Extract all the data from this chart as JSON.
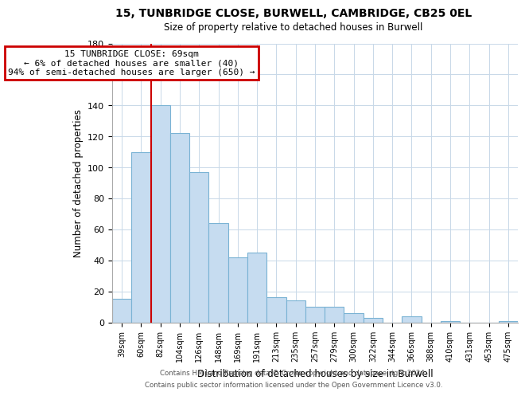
{
  "title1": "15, TUNBRIDGE CLOSE, BURWELL, CAMBRIDGE, CB25 0EL",
  "title2": "Size of property relative to detached houses in Burwell",
  "xlabel": "Distribution of detached houses by size in Burwell",
  "ylabel": "Number of detached properties",
  "bar_labels": [
    "39sqm",
    "60sqm",
    "82sqm",
    "104sqm",
    "126sqm",
    "148sqm",
    "169sqm",
    "191sqm",
    "213sqm",
    "235sqm",
    "257sqm",
    "279sqm",
    "300sqm",
    "322sqm",
    "344sqm",
    "366sqm",
    "388sqm",
    "410sqm",
    "431sqm",
    "453sqm",
    "475sqm"
  ],
  "bar_values": [
    15,
    110,
    140,
    122,
    97,
    64,
    42,
    45,
    16,
    14,
    10,
    10,
    6,
    3,
    0,
    4,
    0,
    1,
    0,
    0,
    1
  ],
  "bar_color": "#c6dcf0",
  "bar_edge_color": "#7ab3d4",
  "property_line_bar_index": 1,
  "annotation_text1": "15 TUNBRIDGE CLOSE: 69sqm",
  "annotation_text2": "← 6% of detached houses are smaller (40)",
  "annotation_text3": "94% of semi-detached houses are larger (650) →",
  "annotation_box_color": "#ffffff",
  "annotation_box_edge": "#cc0000",
  "property_line_color": "#cc0000",
  "ylim": [
    0,
    180
  ],
  "yticks": [
    0,
    20,
    40,
    60,
    80,
    100,
    120,
    140,
    160,
    180
  ],
  "footer1": "Contains HM Land Registry data © Crown copyright and database right 2024.",
  "footer2": "Contains public sector information licensed under the Open Government Licence v3.0.",
  "background_color": "#ffffff",
  "grid_color": "#c8d8e8"
}
